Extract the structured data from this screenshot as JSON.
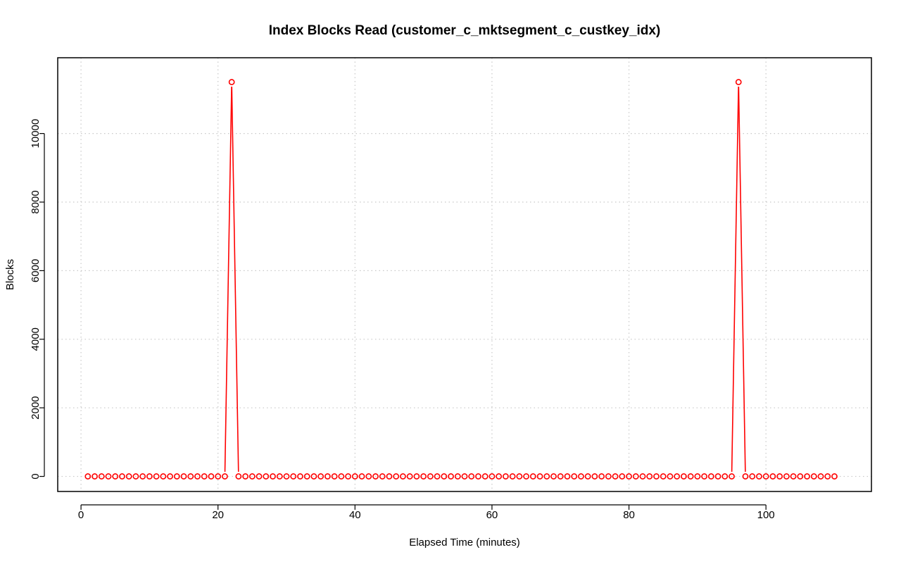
{
  "chart_data": {
    "type": "line",
    "title": "Index Blocks Read (customer_c_mktsegment_c_custkey_idx)",
    "xlabel": "Elapsed Time (minutes)",
    "ylabel": "Blocks",
    "xlim": [
      -3.4,
      115.4
    ],
    "ylim": [
      -440,
      12210
    ],
    "x_ticks": [
      0,
      20,
      40,
      60,
      80,
      100
    ],
    "y_ticks": [
      0,
      2000,
      4000,
      6000,
      8000,
      10000
    ],
    "grid": true,
    "series": [
      {
        "color": "#ff0000",
        "marker": "open-circle",
        "x": [
          1,
          2,
          3,
          4,
          5,
          6,
          7,
          8,
          9,
          10,
          11,
          12,
          13,
          14,
          15,
          16,
          17,
          18,
          19,
          20,
          21,
          22,
          23,
          24,
          25,
          26,
          27,
          28,
          29,
          30,
          31,
          32,
          33,
          34,
          35,
          36,
          37,
          38,
          39,
          40,
          41,
          42,
          43,
          44,
          45,
          46,
          47,
          48,
          49,
          50,
          51,
          52,
          53,
          54,
          55,
          56,
          57,
          58,
          59,
          60,
          61,
          62,
          63,
          64,
          65,
          66,
          67,
          68,
          69,
          70,
          71,
          72,
          73,
          74,
          75,
          76,
          77,
          78,
          79,
          80,
          81,
          82,
          83,
          84,
          85,
          86,
          87,
          88,
          89,
          90,
          91,
          92,
          93,
          94,
          95,
          96,
          97,
          98,
          99,
          100,
          101,
          102,
          103,
          104,
          105,
          106,
          107,
          108,
          109,
          110
        ],
        "y": [
          0,
          0,
          0,
          0,
          0,
          0,
          0,
          0,
          0,
          0,
          0,
          0,
          0,
          0,
          0,
          0,
          0,
          0,
          0,
          0,
          0,
          11500,
          0,
          0,
          0,
          0,
          0,
          0,
          0,
          0,
          0,
          0,
          0,
          0,
          0,
          0,
          0,
          0,
          0,
          0,
          0,
          0,
          0,
          0,
          0,
          0,
          0,
          0,
          0,
          0,
          0,
          0,
          0,
          0,
          0,
          0,
          0,
          0,
          0,
          0,
          0,
          0,
          0,
          0,
          0,
          0,
          0,
          0,
          0,
          0,
          0,
          0,
          0,
          0,
          0,
          0,
          0,
          0,
          0,
          0,
          0,
          0,
          0,
          0,
          0,
          0,
          0,
          0,
          0,
          0,
          0,
          0,
          0,
          0,
          0,
          11500,
          0,
          0,
          0,
          0,
          0,
          0,
          0,
          0,
          0,
          0,
          0,
          0,
          0,
          0
        ]
      }
    ]
  }
}
